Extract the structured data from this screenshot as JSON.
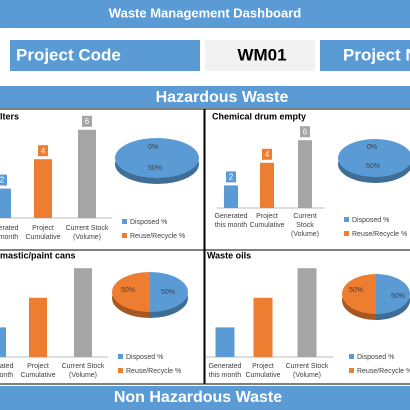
{
  "header": {
    "title": "Waste Management Dashboard",
    "project_code_label": "Project Code",
    "project_code": "WM01",
    "project_name_label": "Project N"
  },
  "sections": [
    "Hazardous Waste",
    "Non Hazardous Waste"
  ],
  "chart_data": [
    {
      "type": "bar",
      "title": "lters",
      "categories": [
        "Generated this month",
        "Project Cumulative",
        "Current Stock (Volume)"
      ],
      "values": [
        2,
        4,
        6
      ],
      "colors": [
        "#5b9bd5",
        "#ed7d31",
        "#a5a5a5"
      ],
      "data_labels": true
    },
    {
      "type": "pie",
      "labels": [
        "Disposed %",
        "Reuse/Recycle %"
      ],
      "values": [
        50,
        0
      ],
      "value_labels": [
        "50%",
        "0%"
      ],
      "colors": [
        "#5b9bd5",
        "#ed7d31"
      ]
    },
    {
      "type": "bar",
      "title": "Chemical drum empty",
      "categories": [
        "Generated this month",
        "Project Cumulative",
        "Current Stock (Volume)"
      ],
      "values": [
        2,
        4,
        6
      ],
      "colors": [
        "#5b9bd5",
        "#ed7d31",
        "#a5a5a5"
      ],
      "data_labels": true
    },
    {
      "type": "pie",
      "labels": [
        "Disposed %",
        "Reuse/Recycle %"
      ],
      "values": [
        50,
        0
      ],
      "value_labels": [
        "50%",
        "0%"
      ],
      "colors": [
        "#5b9bd5",
        "#ed7d31"
      ]
    },
    {
      "type": "bar",
      "title": "mastic/paint cans",
      "categories": [
        "Generated this month",
        "Project Cumulative",
        "Current Stock (Volume)"
      ],
      "values": [
        2,
        4,
        6
      ],
      "colors": [
        "#5b9bd5",
        "#ed7d31",
        "#a5a5a5"
      ],
      "data_labels": false
    },
    {
      "type": "pie",
      "labels": [
        "Disposed %",
        "Reuse/Recycle %"
      ],
      "values": [
        50,
        50
      ],
      "value_labels": [
        "50%",
        "50%"
      ],
      "colors": [
        "#5b9bd5",
        "#ed7d31"
      ]
    },
    {
      "type": "bar",
      "title": "Waste oils",
      "categories": [
        "Generated this month",
        "Project Cumulative",
        "Current Stock (Volume)"
      ],
      "values": [
        2,
        4,
        6
      ],
      "colors": [
        "#5b9bd5",
        "#ed7d31",
        "#a5a5a5"
      ],
      "data_labels": false
    },
    {
      "type": "pie",
      "labels": [
        "Disposed %",
        "Reuse/Recycle %"
      ],
      "values": [
        50,
        50
      ],
      "value_labels": [
        "50%",
        "50%"
      ],
      "colors": [
        "#5b9bd5",
        "#ed7d31"
      ]
    }
  ]
}
